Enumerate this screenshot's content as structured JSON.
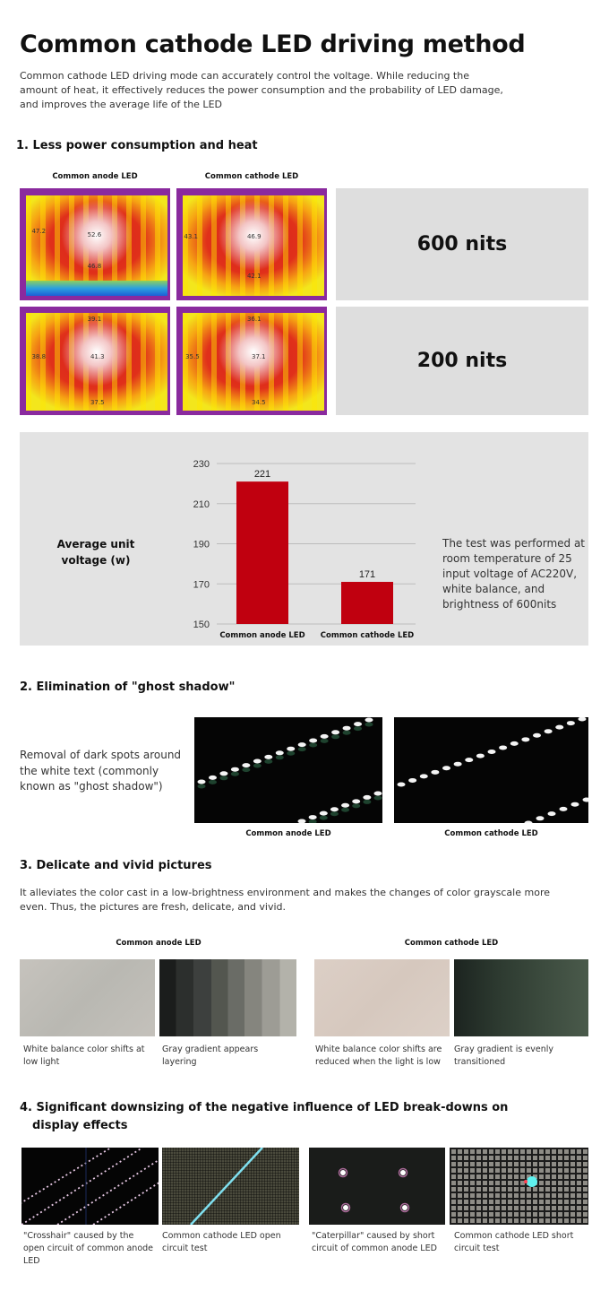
{
  "title": "Common cathode LED driving method",
  "description": "Common cathode LED driving mode can accurately control the voltage. While reducing the amount of heat, it effectively reduces the power consumption and the probability of LED damage, and improves the average life of the LED",
  "section1": {
    "heading": "1. Less power consumption and heat",
    "col_anode": "Common anode LED",
    "col_cathode": "Common cathode LED",
    "rows": [
      {
        "label": "600 nits",
        "anode_readings": [
          "52.6",
          "47.2",
          "46.8"
        ],
        "cathode_readings": [
          "46.9",
          "43.1",
          "42.1"
        ]
      },
      {
        "label": "200 nits",
        "anode_readings": [
          "39.1",
          "38.8",
          "41.3",
          "37.5"
        ],
        "cathode_readings": [
          "36.1",
          "35.5",
          "37.1",
          "34.5"
        ]
      }
    ]
  },
  "chart_data": {
    "type": "bar",
    "ylabel": "Average unit voltage (w)",
    "categories": [
      "Common anode LED",
      "Common cathode LED"
    ],
    "values": [
      221,
      171
    ],
    "ylim": [
      150,
      230
    ],
    "yticks": [
      150,
      170,
      190,
      210,
      230
    ],
    "grid": true,
    "bar_color": "#c0000f",
    "note": "The test was performed at room temperature of 25 input voltage of AC220V, white balance, and brightness of 600nits"
  },
  "section2": {
    "heading": "2. Elimination of \"ghost shadow\"",
    "text": "Removal of dark spots around the white text (commonly known as \"ghost shadow\")",
    "captions": [
      "Common anode LED",
      "Common cathode LED"
    ]
  },
  "section3": {
    "heading": "3. Delicate and vivid pictures",
    "text": "It alleviates the color cast in a low-brightness environment and makes the changes of color grayscale more even. Thus, the pictures are fresh, delicate, and vivid.",
    "group_anode": "Common anode LED",
    "group_cathode": "Common cathode LED",
    "captions": [
      "White balance color shifts at low light",
      "Gray gradient appears layering",
      "White balance color shifts are reduced when the light is low",
      "Gray gradient is evenly transitioned"
    ]
  },
  "section4": {
    "heading_line1": "4. Significant downsizing of the negative influence of LED break-downs on",
    "heading_line2": "display  effects",
    "captions": [
      "\"Crosshair\" caused by the open circuit of common anode LED",
      "Common cathode LED open circuit test",
      "\"Caterpillar\" caused by short circuit of common anode LED",
      "Common cathode LED short circuit test"
    ]
  }
}
